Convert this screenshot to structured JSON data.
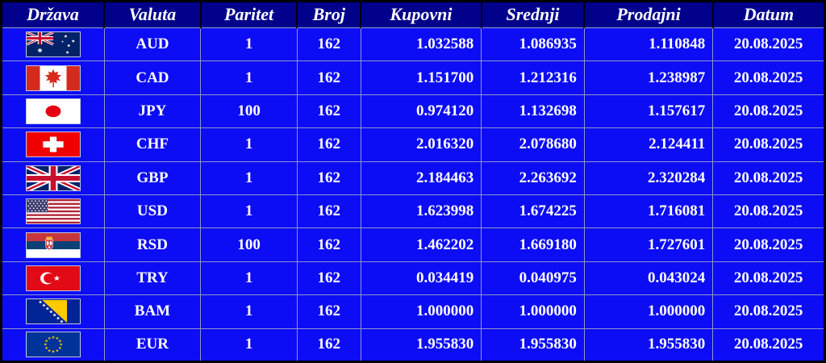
{
  "table": {
    "columns": [
      {
        "label": "Država"
      },
      {
        "label": "Valuta"
      },
      {
        "label": "Paritet"
      },
      {
        "label": "Broj"
      },
      {
        "label": "Kupovni"
      },
      {
        "label": "Srednji"
      },
      {
        "label": "Prodajni"
      },
      {
        "label": "Datum"
      }
    ],
    "rows": [
      {
        "flag": "australia-flag-icon",
        "currency": "AUD",
        "parity": "1",
        "number": "162",
        "buy": "1.032588",
        "mid": "1.086935",
        "sell": "1.110848",
        "date": "20.08.2025"
      },
      {
        "flag": "canada-flag-icon",
        "currency": "CAD",
        "parity": "1",
        "number": "162",
        "buy": "1.151700",
        "mid": "1.212316",
        "sell": "1.238987",
        "date": "20.08.2025"
      },
      {
        "flag": "japan-flag-icon",
        "currency": "JPY",
        "parity": "100",
        "number": "162",
        "buy": "0.974120",
        "mid": "1.132698",
        "sell": "1.157617",
        "date": "20.08.2025"
      },
      {
        "flag": "switzerland-flag-icon",
        "currency": "CHF",
        "parity": "1",
        "number": "162",
        "buy": "2.016320",
        "mid": "2.078680",
        "sell": "2.124411",
        "date": "20.08.2025"
      },
      {
        "flag": "uk-flag-icon",
        "currency": "GBP",
        "parity": "1",
        "number": "162",
        "buy": "2.184463",
        "mid": "2.263692",
        "sell": "2.320284",
        "date": "20.08.2025"
      },
      {
        "flag": "usa-flag-icon",
        "currency": "USD",
        "parity": "1",
        "number": "162",
        "buy": "1.623998",
        "mid": "1.674225",
        "sell": "1.716081",
        "date": "20.08.2025"
      },
      {
        "flag": "serbia-flag-icon",
        "currency": "RSD",
        "parity": "100",
        "number": "162",
        "buy": "1.462202",
        "mid": "1.669180",
        "sell": "1.727601",
        "date": "20.08.2025"
      },
      {
        "flag": "turkey-flag-icon",
        "currency": "TRY",
        "parity": "1",
        "number": "162",
        "buy": "0.034419",
        "mid": "0.040975",
        "sell": "0.043024",
        "date": "20.08.2025"
      },
      {
        "flag": "bosnia-flag-icon",
        "currency": "BAM",
        "parity": "1",
        "number": "162",
        "buy": "1.000000",
        "mid": "1.000000",
        "sell": "1.000000",
        "date": "20.08.2025"
      },
      {
        "flag": "eu-flag-icon",
        "currency": "EUR",
        "parity": "1",
        "number": "162",
        "buy": "1.955830",
        "mid": "1.955830",
        "sell": "1.955830",
        "date": "20.08.2025"
      }
    ]
  },
  "colors": {
    "header_bg": "#00008b",
    "row_bg": "#0c0cf5",
    "text": "#ffffff",
    "grid_line": "#8f97c4",
    "frame": "#000000"
  }
}
